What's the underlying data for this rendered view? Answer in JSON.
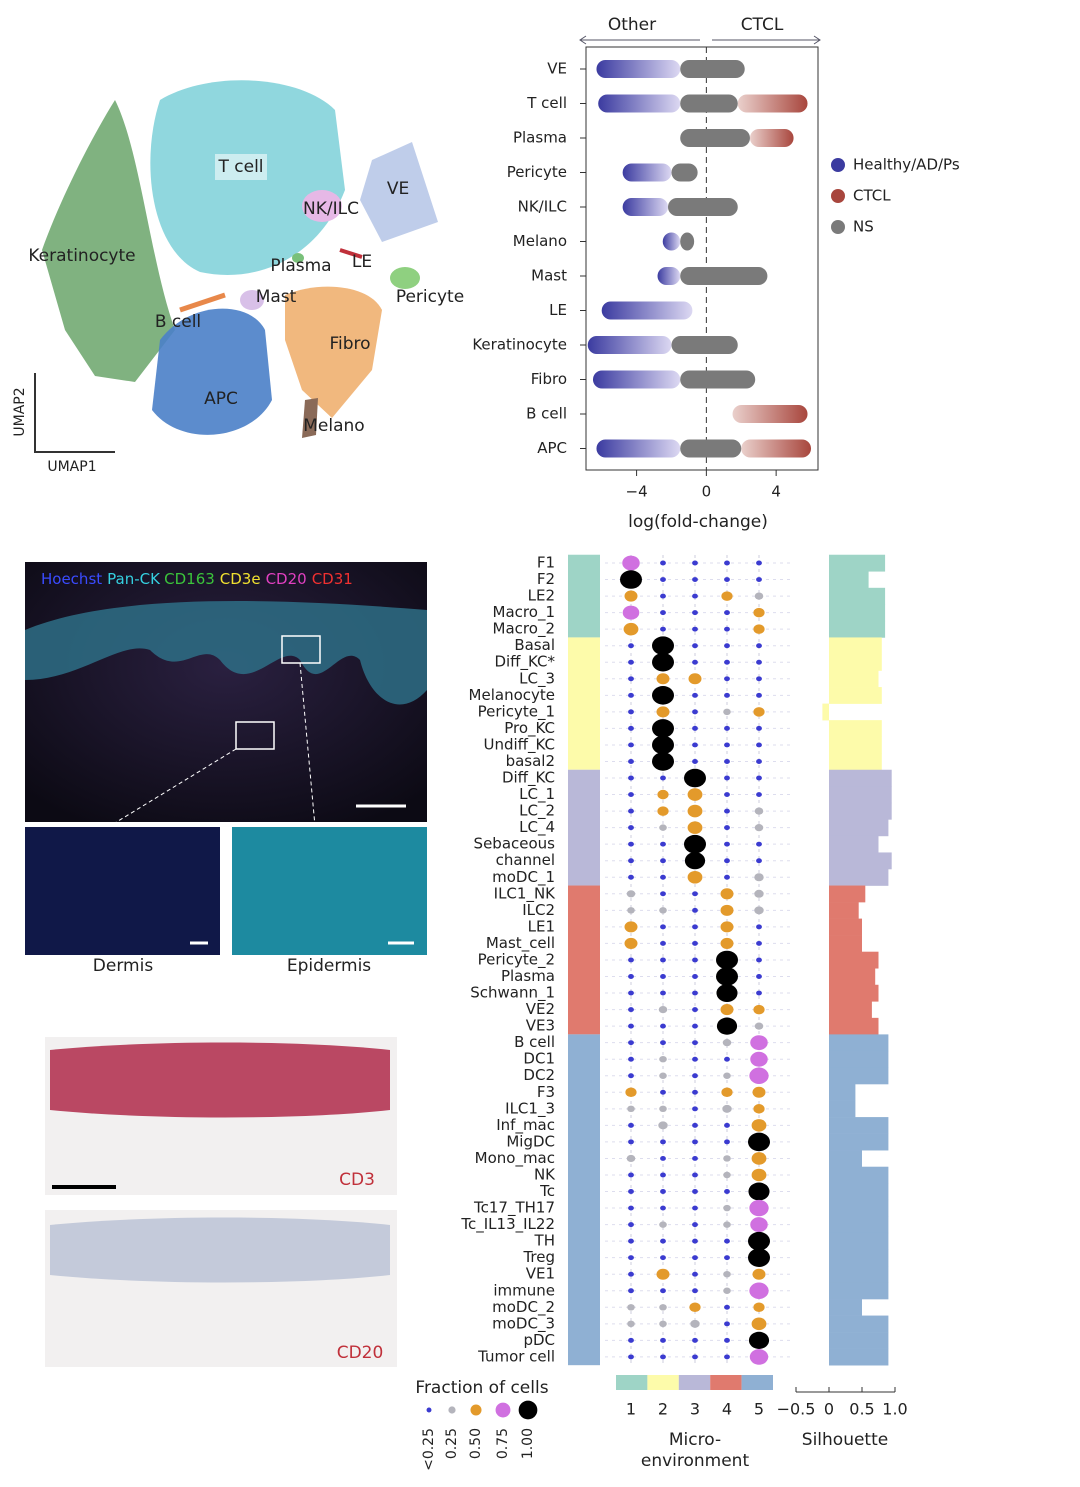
{
  "umap": {
    "labels": [
      "T cell",
      "NK/ILC",
      "VE",
      "Keratinocyte",
      "Plasma",
      "LE",
      "Pericyte",
      "Mast",
      "B cell",
      "Fibro",
      "APC",
      "Melano"
    ],
    "x_label": "UMAP1",
    "y_label": "UMAP2"
  },
  "chart_data": {
    "type": "beeswarm",
    "header_left": "Other",
    "header_right": "CTCL",
    "x_label": "log(fold-change)",
    "categories": [
      "VE",
      "T cell",
      "Plasma",
      "Pericyte",
      "NK/ILC",
      "Melano",
      "Mast",
      "LE",
      "Keratinocyte",
      "Fibro",
      "B cell",
      "APC"
    ],
    "series": [
      {
        "name": "Healthy/AD/Ps",
        "color": "#3b3ba0",
        "values": [
          [
            -6.3,
            -1.5
          ],
          [
            -6.2,
            -1.5
          ],
          null,
          [
            -4.8,
            -2
          ],
          [
            -4.8,
            -2.2
          ],
          [
            -2.5,
            -1.5
          ],
          [
            -2.8,
            -1.5
          ],
          [
            -6,
            -0.8
          ],
          [
            -6.8,
            -2
          ],
          [
            -6.5,
            -1.5
          ],
          null,
          [
            -6.3,
            -1.5
          ]
        ]
      },
      {
        "name": "CTCL",
        "color": "#a8463d",
        "values": [
          null,
          [
            1.8,
            5.8
          ],
          [
            2.5,
            5
          ],
          null,
          null,
          null,
          null,
          null,
          null,
          null,
          [
            1.5,
            5.8
          ],
          [
            2,
            6
          ]
        ]
      },
      {
        "name": "NS",
        "color": "#7a7a7a",
        "values": [
          [
            -1.5,
            2.2
          ],
          [
            -1.5,
            1.8
          ],
          [
            -1.5,
            2.5
          ],
          [
            -2,
            -0.5
          ],
          [
            -2.2,
            1.8
          ],
          [
            -1.5,
            -0.7
          ],
          [
            -1.5,
            3.5
          ],
          null,
          [
            -2,
            1.8
          ],
          [
            -1.5,
            2.8
          ],
          null,
          [
            -1.5,
            2
          ]
        ]
      }
    ],
    "xlim": [
      -6.9,
      6.4
    ],
    "xticks": [
      {
        "value": -4,
        "label": "−4"
      },
      0,
      4
    ]
  },
  "micrograph": {
    "stains": [
      {
        "text": "Hoechst",
        "color": "#3a4bff"
      },
      {
        "text": "Pan-CK",
        "color": "#35d0e0"
      },
      {
        "text": "CD163",
        "color": "#3bc43b"
      },
      {
        "text": "CD3e",
        "color": "#f0e030"
      },
      {
        "text": "CD20",
        "color": "#e040c0"
      },
      {
        "text": "CD31",
        "color": "#f03030"
      }
    ],
    "insets": [
      "Dermis",
      "Epidermis"
    ],
    "sections": [
      "CD3",
      "CD20"
    ]
  },
  "dotplot": {
    "groups": [
      {
        "rows": [
          {
            "name": "F1",
            "values": [
              0.75,
              0.1,
              0.1,
              0.1,
              0.1
            ],
            "silhouette": 0.85
          },
          {
            "name": "F2",
            "values": [
              1,
              0.1,
              0.1,
              0.1,
              0.1
            ],
            "silhouette": 0.6
          },
          {
            "name": "LE2",
            "values": [
              0.5,
              0.1,
              0.1,
              0.4,
              0.25
            ],
            "silhouette": 0.85
          },
          {
            "name": "Macro_1",
            "values": [
              0.7,
              0.1,
              0.1,
              0.1,
              0.4
            ],
            "silhouette": 0.85
          },
          {
            "name": "Macro_2",
            "values": [
              0.6,
              0.1,
              0.1,
              0.1,
              0.4
            ],
            "silhouette": 0.85
          }
        ]
      },
      {
        "rows": [
          {
            "name": "Basal",
            "values": [
              0.1,
              1,
              0.1,
              0.1,
              0.1
            ],
            "silhouette": 0.8
          },
          {
            "name": "Diff_KC*",
            "values": [
              0.1,
              1,
              0.1,
              0.1,
              0.1
            ],
            "silhouette": 0.8
          },
          {
            "name": "LC_3",
            "values": [
              0.1,
              0.5,
              0.5,
              0.1,
              0.1
            ],
            "silhouette": 0.75
          },
          {
            "name": "Melanocyte",
            "values": [
              0.1,
              1,
              0.1,
              0.1,
              0.1
            ],
            "silhouette": 0.8
          },
          {
            "name": "Pericyte_1",
            "values": [
              0.1,
              0.5,
              0.1,
              0.2,
              0.4
            ],
            "silhouette": -0.1
          },
          {
            "name": "Pro_KC",
            "values": [
              0.1,
              1,
              0.1,
              0.1,
              0.1
            ],
            "silhouette": 0.8
          },
          {
            "name": "Undiff_KC",
            "values": [
              0.1,
              1,
              0.1,
              0.1,
              0.1
            ],
            "silhouette": 0.8
          },
          {
            "name": "basal2",
            "values": [
              0.1,
              1,
              0.1,
              0.1,
              0.1
            ],
            "silhouette": 0.8
          }
        ]
      },
      {
        "rows": [
          {
            "name": "Diff_KC",
            "values": [
              0.1,
              0.1,
              1,
              0.1,
              0.1
            ],
            "silhouette": 0.95
          },
          {
            "name": "LC_1",
            "values": [
              0.1,
              0.4,
              0.6,
              0.1,
              0.1
            ],
            "silhouette": 0.95
          },
          {
            "name": "LC_2",
            "values": [
              0.1,
              0.4,
              0.6,
              0.1,
              0.25
            ],
            "silhouette": 0.95
          },
          {
            "name": "LC_4",
            "values": [
              0.1,
              0.2,
              0.6,
              0.1,
              0.25
            ],
            "silhouette": 0.9
          },
          {
            "name": "Sebaceous",
            "values": [
              0.1,
              0.1,
              1,
              0.1,
              0.1
            ],
            "silhouette": 0.75
          },
          {
            "name": "channel",
            "values": [
              0.1,
              0.1,
              0.9,
              0.1,
              0.1
            ],
            "silhouette": 0.95
          },
          {
            "name": "moDC_1",
            "values": [
              0.1,
              0.1,
              0.6,
              0.1,
              0.3
            ],
            "silhouette": 0.9
          }
        ]
      },
      {
        "rows": [
          {
            "name": "ILC1_NK",
            "values": [
              0.25,
              0.1,
              0.1,
              0.5,
              0.3
            ],
            "silhouette": 0.55
          },
          {
            "name": "ILC2",
            "values": [
              0.2,
              0.2,
              0.1,
              0.5,
              0.3
            ],
            "silhouette": 0.45
          },
          {
            "name": "LE1",
            "values": [
              0.5,
              0.1,
              0.1,
              0.5,
              0.1
            ],
            "silhouette": 0.5
          },
          {
            "name": "Mast_cell",
            "values": [
              0.5,
              0.1,
              0.1,
              0.5,
              0.1
            ],
            "silhouette": 0.5
          },
          {
            "name": "Pericyte_2",
            "values": [
              0.1,
              0.1,
              0.1,
              1,
              0.1
            ],
            "silhouette": 0.75
          },
          {
            "name": "Plasma",
            "values": [
              0.1,
              0.1,
              0.1,
              1,
              0.1
            ],
            "silhouette": 0.7
          },
          {
            "name": "Schwann_1",
            "values": [
              0.1,
              0.1,
              0.1,
              0.95,
              0.1
            ],
            "silhouette": 0.75
          },
          {
            "name": "VE2",
            "values": [
              0.1,
              0.25,
              0.1,
              0.5,
              0.4
            ],
            "silhouette": 0.65
          },
          {
            "name": "VE3",
            "values": [
              0.1,
              0.1,
              0.1,
              0.9,
              0.25
            ],
            "silhouette": 0.75
          }
        ]
      },
      {
        "rows": [
          {
            "name": "B cell",
            "values": [
              0.1,
              0.1,
              0.1,
              0.25,
              0.75
            ],
            "silhouette": 0.9
          },
          {
            "name": "DC1",
            "values": [
              0.1,
              0.2,
              0.1,
              0.1,
              0.75
            ],
            "silhouette": 0.9
          },
          {
            "name": "DC2",
            "values": [
              0.1,
              0.2,
              0.1,
              0.2,
              0.85
            ],
            "silhouette": 0.9
          },
          {
            "name": "F3",
            "values": [
              0.4,
              0.1,
              0.1,
              0.4,
              0.5
            ],
            "silhouette": 0.4
          },
          {
            "name": "ILC1_3",
            "values": [
              0.2,
              0.2,
              0.1,
              0.3,
              0.4
            ],
            "silhouette": 0.4
          },
          {
            "name": "Inf_mac",
            "values": [
              0.1,
              0.3,
              0.1,
              0.1,
              0.6
            ],
            "silhouette": 0.9
          },
          {
            "name": "MigDC",
            "values": [
              0.1,
              0.1,
              0.1,
              0.1,
              1
            ],
            "silhouette": 0.9
          },
          {
            "name": "Mono_mac",
            "values": [
              0.25,
              0.1,
              0.1,
              0.2,
              0.6
            ],
            "silhouette": 0.5
          },
          {
            "name": "NK",
            "values": [
              0.1,
              0.1,
              0.1,
              0.2,
              0.6
            ],
            "silhouette": 0.9
          },
          {
            "name": "Tc",
            "values": [
              0.1,
              0.1,
              0.1,
              0.1,
              0.95
            ],
            "silhouette": 0.9
          },
          {
            "name": "Tc17_TH17",
            "values": [
              0.1,
              0.1,
              0.1,
              0.2,
              0.85
            ],
            "silhouette": 0.9
          },
          {
            "name": "Tc_IL13_IL22",
            "values": [
              0.1,
              0.2,
              0.1,
              0.2,
              0.75
            ],
            "silhouette": 0.9
          },
          {
            "name": "TH",
            "values": [
              0.1,
              0.1,
              0.1,
              0.1,
              1
            ],
            "silhouette": 0.9
          },
          {
            "name": "Treg",
            "values": [
              0.1,
              0.1,
              0.1,
              0.1,
              1
            ],
            "silhouette": 0.9
          },
          {
            "name": "VE1",
            "values": [
              0.1,
              0.5,
              0.1,
              0.2,
              0.5
            ],
            "silhouette": 0.9
          },
          {
            "name": "immune",
            "values": [
              0.1,
              0.1,
              0.1,
              0.2,
              0.85
            ],
            "silhouette": 0.9
          },
          {
            "name": "moDC_2",
            "values": [
              0.2,
              0.2,
              0.4,
              0.1,
              0.4
            ],
            "silhouette": 0.5
          },
          {
            "name": "moDC_3",
            "values": [
              0.2,
              0.2,
              0.3,
              0.1,
              0.6
            ],
            "silhouette": 0.9
          },
          {
            "name": "pDC",
            "values": [
              0.1,
              0.1,
              0.1,
              0.1,
              0.9
            ],
            "silhouette": 0.9
          },
          {
            "name": "Tumor cell",
            "values": [
              0.1,
              0.1,
              0.1,
              0.1,
              0.8
            ],
            "silhouette": 0.9
          }
        ]
      }
    ],
    "environments": [
      1,
      2,
      3,
      4,
      5
    ],
    "env_colors": [
      "#9ed4c6",
      "#fdfbaa",
      "#b9b8d8",
      "#e07a6e",
      "#8fb0d3"
    ],
    "env_title": [
      "Micro-",
      "environment"
    ],
    "fraction_title": "Fraction of cells",
    "fraction_levels": [
      {
        "value": 0.1,
        "label": "<0.25",
        "color": "#3b3bd0"
      },
      {
        "value": 0.25,
        "label": "0.25",
        "color": "#b4b4bc"
      },
      {
        "value": 0.5,
        "label": "0.50",
        "color": "#e39a2b"
      },
      {
        "value": 0.75,
        "label": "0.75",
        "color": "#d070e0"
      },
      {
        "value": 1,
        "label": "1.00",
        "color": "#000000"
      }
    ],
    "silhouette_title": "Silhouette",
    "silhouette_lim": [
      -0.5,
      1.0
    ],
    "silhouette_ticks": [
      {
        "value": -0.5,
        "label": "−0.5"
      },
      0,
      0.5,
      {
        "value": 1,
        "label": "1.0"
      }
    ]
  }
}
